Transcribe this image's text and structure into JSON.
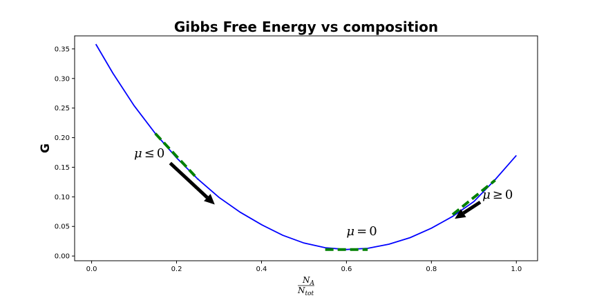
{
  "chart_data": {
    "type": "line",
    "title": "Gibbs Free Energy vs composition",
    "ylabel": "G",
    "xlabel": {
      "numerator": "N",
      "numerator_sub": "A",
      "denominator": "N",
      "denominator_sub": "tot"
    },
    "xlim": [
      -0.04,
      1.05
    ],
    "ylim": [
      -0.008,
      0.372
    ],
    "x_ticks": [
      0.0,
      0.2,
      0.4,
      0.6,
      0.8,
      1.0
    ],
    "x_tick_labels": [
      "0.0",
      "0.2",
      "0.4",
      "0.6",
      "0.8",
      "1.0"
    ],
    "y_ticks": [
      0.0,
      0.05,
      0.1,
      0.15,
      0.2,
      0.25,
      0.3,
      0.35
    ],
    "y_tick_labels": [
      "0.00",
      "0.05",
      "0.10",
      "0.15",
      "0.20",
      "0.25",
      "0.30",
      "0.35"
    ],
    "grid": false,
    "curve": {
      "color": "#0000ff",
      "x": [
        0.01,
        0.05,
        0.1,
        0.15,
        0.2,
        0.25,
        0.3,
        0.35,
        0.4,
        0.45,
        0.5,
        0.55,
        0.6,
        0.65,
        0.7,
        0.75,
        0.8,
        0.85,
        0.9,
        0.95,
        1.0
      ],
      "y": [
        0.358,
        0.309,
        0.254,
        0.207,
        0.166,
        0.13,
        0.099,
        0.074,
        0.053,
        0.035,
        0.022,
        0.014,
        0.011,
        0.013,
        0.02,
        0.031,
        0.047,
        0.067,
        0.092,
        0.129,
        0.17
      ]
    },
    "tangents": [
      {
        "color": "#008000",
        "x": [
          0.15,
          0.25
        ],
        "y": [
          0.207,
          0.13
        ]
      },
      {
        "color": "#008000",
        "x": [
          0.55,
          0.65
        ],
        "y": [
          0.011,
          0.011
        ]
      },
      {
        "color": "#008000",
        "x": [
          0.85,
          0.95
        ],
        "y": [
          0.07,
          0.128
        ]
      }
    ],
    "arrows": [
      {
        "from": [
          0.185,
          0.157
        ],
        "to": [
          0.29,
          0.087
        ]
      },
      {
        "from": [
          0.915,
          0.091
        ],
        "to": [
          0.855,
          0.063
        ]
      }
    ],
    "annotations": [
      {
        "mu": "μ",
        "op": "≤",
        "value": "0",
        "x": 0.1,
        "y": 0.167
      },
      {
        "mu": "μ",
        "op": "=",
        "value": "0",
        "x": 0.6,
        "y": 0.035
      },
      {
        "mu": "μ",
        "op": "≥",
        "value": "0",
        "x": 0.92,
        "y": 0.097
      }
    ]
  }
}
